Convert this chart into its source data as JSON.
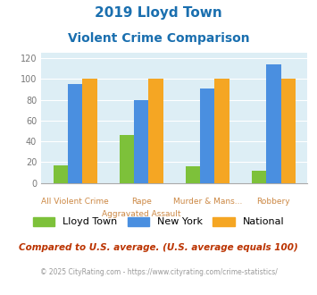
{
  "title_line1": "2019 Lloyd Town",
  "title_line2": "Violent Crime Comparison",
  "cat_labels_row1": [
    "",
    "Rape",
    "Murder & Mans...",
    ""
  ],
  "cat_labels_row2": [
    "All Violent Crime",
    "Aggravated Assault",
    "",
    "Robbery"
  ],
  "lloyd_town": [
    17,
    46,
    16,
    12
  ],
  "new_york": [
    95,
    80,
    91,
    114
  ],
  "national": [
    100,
    100,
    100,
    100
  ],
  "colors": {
    "lloyd_town": "#7dc13a",
    "new_york": "#4a8fe0",
    "national": "#f5a623"
  },
  "ylim": [
    0,
    125
  ],
  "yticks": [
    0,
    20,
    40,
    60,
    80,
    100,
    120
  ],
  "background_color": "#ddeef5",
  "title_color": "#1a6faf",
  "axis_label_color": "#cc8844",
  "footer_note": "Compared to U.S. average. (U.S. average equals 100)",
  "footer_credit": "© 2025 CityRating.com - https://www.cityrating.com/crime-statistics/",
  "legend_labels": [
    "Lloyd Town",
    "New York",
    "National"
  ]
}
